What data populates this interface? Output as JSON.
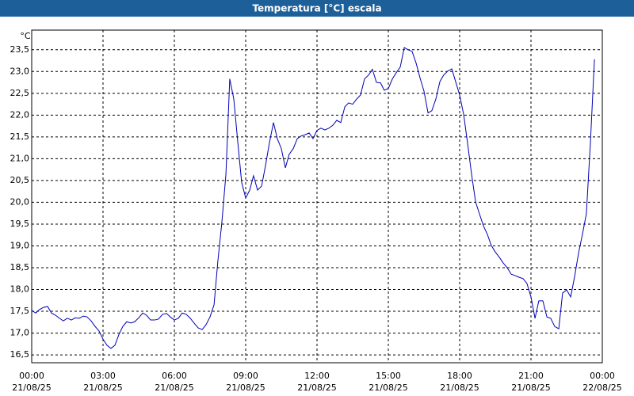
{
  "chart_data": {
    "type": "line",
    "title": "Temperatura [°C] escala",
    "y_unit": "°C",
    "color": "#0000b4",
    "grid": true,
    "xlim": [
      0,
      24
    ],
    "ylim": [
      16.32,
      23.95
    ],
    "xticks": [
      {
        "value": 0,
        "label": "00:00",
        "date": "21/08/25"
      },
      {
        "value": 3,
        "label": "03:00",
        "date": "21/08/25"
      },
      {
        "value": 6,
        "label": "06:00",
        "date": "21/08/25"
      },
      {
        "value": 9,
        "label": "09:00",
        "date": "21/08/25"
      },
      {
        "value": 12,
        "label": "12:00",
        "date": "21/08/25"
      },
      {
        "value": 15,
        "label": "15:00",
        "date": "21/08/25"
      },
      {
        "value": 18,
        "label": "18:00",
        "date": "21/08/25"
      },
      {
        "value": 21,
        "label": "21:00",
        "date": "21/08/25"
      },
      {
        "value": 24,
        "label": "00:00",
        "date": "22/08/25"
      }
    ],
    "yticks": [
      {
        "value": 16.5,
        "label": "16,5"
      },
      {
        "value": 17,
        "label": "17,0"
      },
      {
        "value": 17.5,
        "label": "17,5"
      },
      {
        "value": 18,
        "label": "18,0"
      },
      {
        "value": 18.5,
        "label": "18,5"
      },
      {
        "value": 19,
        "label": "19,0"
      },
      {
        "value": 19.5,
        "label": "19,5"
      },
      {
        "value": 20,
        "label": "20,0"
      },
      {
        "value": 20.5,
        "label": "20,5"
      },
      {
        "value": 21,
        "label": "21,0"
      },
      {
        "value": 21.5,
        "label": "21,5"
      },
      {
        "value": 22,
        "label": "22,0"
      },
      {
        "value": 22.5,
        "label": "22,5"
      },
      {
        "value": 23,
        "label": "23,0"
      },
      {
        "value": 23.5,
        "label": "23,5"
      }
    ],
    "x": [
      0,
      0.17,
      0.33,
      0.5,
      0.67,
      0.83,
      1,
      1.17,
      1.33,
      1.5,
      1.67,
      1.83,
      2,
      2.17,
      2.33,
      2.5,
      2.67,
      2.83,
      3,
      3.17,
      3.33,
      3.5,
      3.67,
      3.83,
      4,
      4.17,
      4.33,
      4.5,
      4.67,
      4.83,
      5,
      5.17,
      5.33,
      5.5,
      5.67,
      5.83,
      6,
      6.17,
      6.33,
      6.5,
      6.67,
      6.83,
      7,
      7.17,
      7.33,
      7.5,
      7.67,
      7.83,
      8,
      8.17,
      8.33,
      8.5,
      8.67,
      8.83,
      9,
      9.17,
      9.33,
      9.5,
      9.67,
      9.83,
      10,
      10.17,
      10.33,
      10.5,
      10.67,
      10.83,
      11,
      11.17,
      11.33,
      11.5,
      11.67,
      11.83,
      12,
      12.17,
      12.33,
      12.5,
      12.67,
      12.83,
      13,
      13.17,
      13.33,
      13.5,
      13.67,
      13.83,
      14,
      14.17,
      14.33,
      14.5,
      14.67,
      14.83,
      15,
      15.17,
      15.33,
      15.5,
      15.67,
      15.83,
      16,
      16.17,
      16.33,
      16.5,
      16.67,
      16.83,
      17,
      17.17,
      17.33,
      17.5,
      17.67,
      17.83,
      18,
      18.17,
      18.33,
      18.5,
      18.67,
      18.83,
      19,
      19.17,
      19.33,
      19.5,
      19.67,
      19.83,
      20,
      20.17,
      20.33,
      20.5,
      20.67,
      20.83,
      21,
      21.17,
      21.33,
      21.5,
      21.67,
      21.83,
      22,
      22.17,
      22.33,
      22.5,
      22.67,
      22.83,
      23,
      23.17,
      23.33,
      23.5,
      23.67
    ],
    "values": [
      17.52,
      17.46,
      17.54,
      17.59,
      17.61,
      17.46,
      17.41,
      17.34,
      17.28,
      17.34,
      17.3,
      17.35,
      17.34,
      17.39,
      17.37,
      17.28,
      17.15,
      17.05,
      16.86,
      16.72,
      16.65,
      16.72,
      16.97,
      17.15,
      17.26,
      17.23,
      17.26,
      17.35,
      17.46,
      17.41,
      17.3,
      17.3,
      17.32,
      17.43,
      17.45,
      17.37,
      17.3,
      17.34,
      17.46,
      17.43,
      17.34,
      17.23,
      17.12,
      17.08,
      17.19,
      17.37,
      17.65,
      18.65,
      19.55,
      20.65,
      22.83,
      22.37,
      21.37,
      20.46,
      20.1,
      20.28,
      20.61,
      20.28,
      20.37,
      20.83,
      21.37,
      21.83,
      21.46,
      21.23,
      20.79,
      21.1,
      21.23,
      21.46,
      21.52,
      21.55,
      21.59,
      21.46,
      21.65,
      21.7,
      21.66,
      21.7,
      21.77,
      21.88,
      21.83,
      22.19,
      22.28,
      22.25,
      22.37,
      22.46,
      22.83,
      22.92,
      23.05,
      22.75,
      22.74,
      22.57,
      22.61,
      22.83,
      22.97,
      23.1,
      23.55,
      23.5,
      23.46,
      23.19,
      22.86,
      22.55,
      22.05,
      22.1,
      22.37,
      22.77,
      22.92,
      23.01,
      23.06,
      22.77,
      22.46,
      22.01,
      21.37,
      20.65,
      20.01,
      19.74,
      19.46,
      19.26,
      19.01,
      18.86,
      18.74,
      18.61,
      18.5,
      18.35,
      18.32,
      18.28,
      18.25,
      18.14,
      17.83,
      17.34,
      17.74,
      17.74,
      17.37,
      17.34,
      17.15,
      17.1,
      17.92,
      17.99,
      17.83,
      18.28,
      18.83,
      19.28,
      19.74,
      21.37,
      23.28
    ]
  }
}
